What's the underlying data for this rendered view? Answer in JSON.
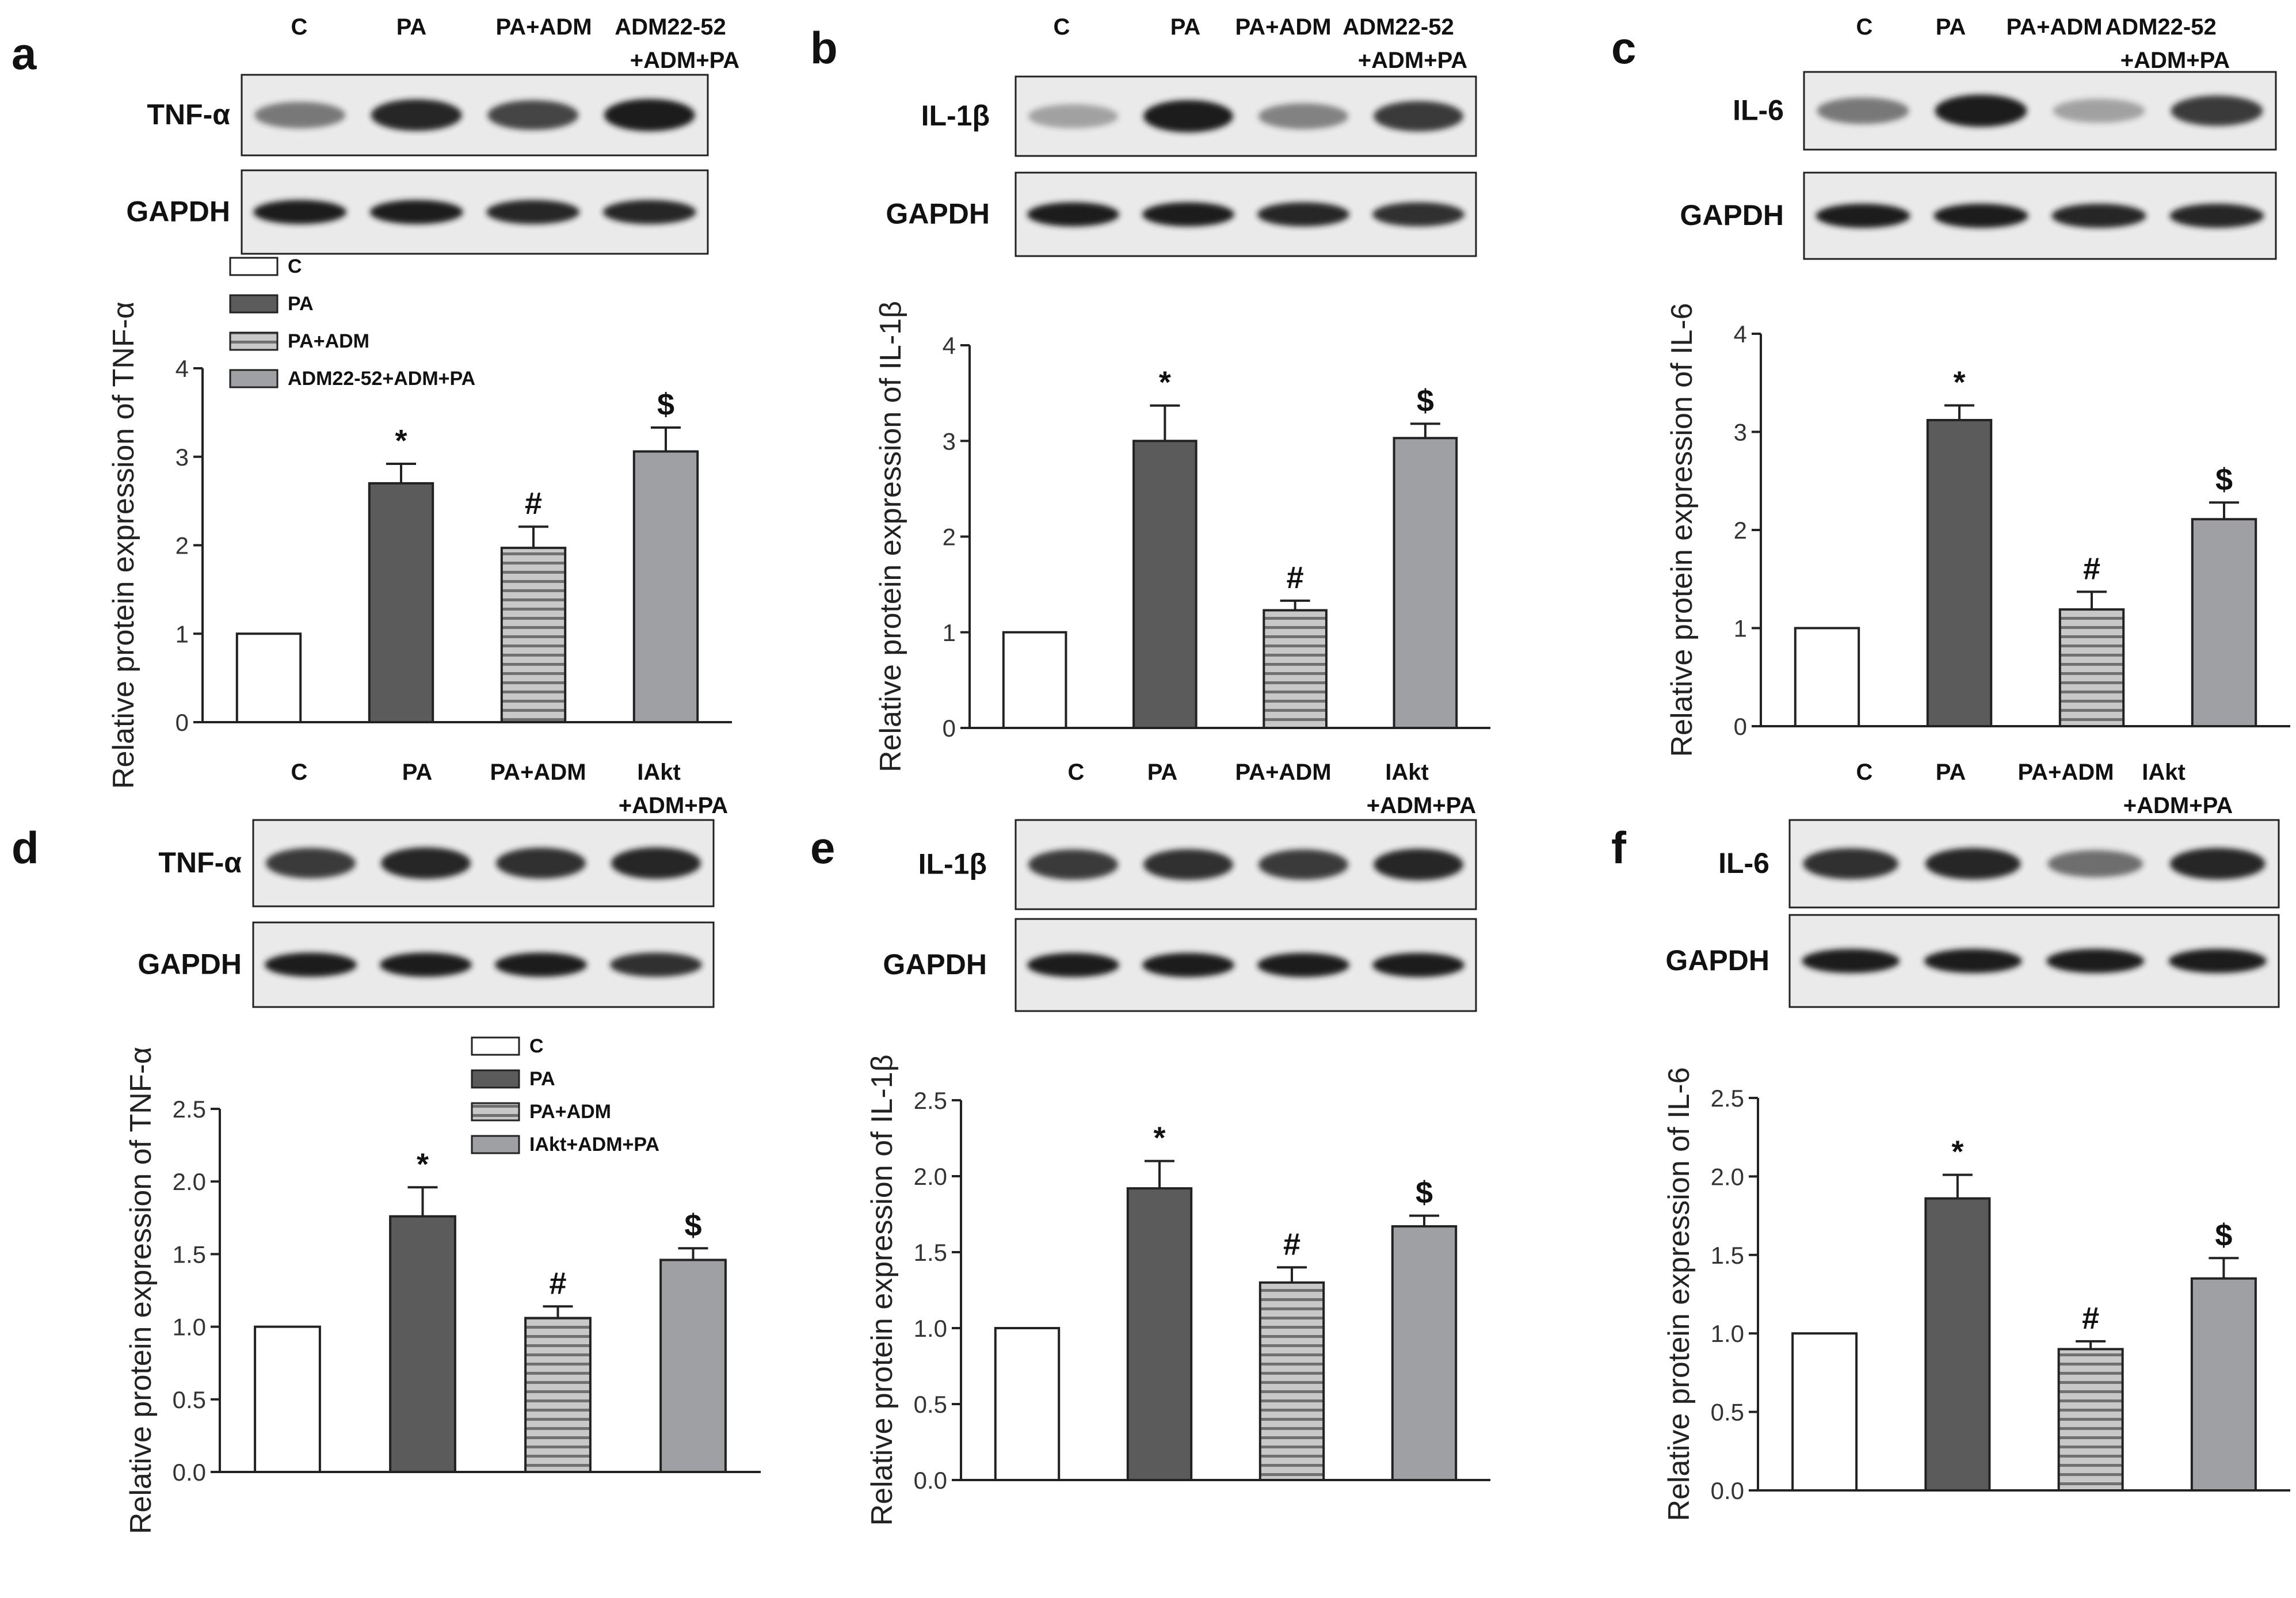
{
  "figure": {
    "colors": {
      "c": "#ffffff",
      "pa": "#5b5b5b",
      "pa_adm": "#c6c6c6",
      "fourth": "#9fa0a4",
      "stripe": "#707070",
      "band": "#1c1c1c",
      "blot_bg": "#eaeaea"
    }
  },
  "chart_data": [
    {
      "panel": "a",
      "type": "bar",
      "lanes": [
        "C",
        "PA",
        "PA+ADM",
        "ADM22-52\n+ADM+PA"
      ],
      "target": "TNF-α",
      "loading": "GAPDH",
      "categories": [
        "C",
        "PA",
        "PA+ADM",
        "ADM22-52+ADM+PA"
      ],
      "values": [
        1.0,
        2.7,
        1.97,
        3.06
      ],
      "errors": [
        0,
        0.22,
        0.24,
        0.27
      ],
      "marks": [
        "",
        "*",
        "#",
        "$"
      ],
      "ylabel": "Relative protein expression of  TNF-α",
      "ylim": [
        0,
        4
      ],
      "yticks": [
        "0",
        "1",
        "2",
        "3",
        "4"
      ],
      "legend": [
        "C",
        "PA",
        "PA+ADM",
        "ADM22-52+ADM+PA"
      ],
      "legend_position": "top-left",
      "band_intensity": [
        0.55,
        0.95,
        0.8,
        1.0
      ],
      "gapdh_intensity": [
        1,
        1,
        0.95,
        0.95
      ]
    },
    {
      "panel": "b",
      "type": "bar",
      "lanes": [
        "C",
        "PA",
        "PA+ADM",
        "ADM22-52\n+ADM+PA"
      ],
      "target": "IL-1β",
      "loading": "GAPDH",
      "categories": [
        "C",
        "PA",
        "PA+ADM",
        "ADM22-52+ADM+PA"
      ],
      "values": [
        1.0,
        3.0,
        1.23,
        3.03
      ],
      "errors": [
        0,
        0.37,
        0.1,
        0.15
      ],
      "marks": [
        "",
        "*",
        "#",
        "$"
      ],
      "ylabel": "Relative protein expression of IL-1β",
      "ylim": [
        0,
        4
      ],
      "yticks": [
        "0",
        "1",
        "2",
        "3",
        "4"
      ],
      "legend": [],
      "legend_position": "",
      "band_intensity": [
        0.35,
        1.0,
        0.5,
        0.85
      ],
      "gapdh_intensity": [
        1,
        1,
        0.95,
        0.9
      ]
    },
    {
      "panel": "c",
      "type": "bar",
      "lanes": [
        "C",
        "PA",
        "PA+ADM",
        "ADM22-52\n+ADM+PA"
      ],
      "target": "IL-6",
      "loading": "GAPDH",
      "categories": [
        "C",
        "PA",
        "PA+ADM",
        "ADM22-52+ADM+PA"
      ],
      "values": [
        1.0,
        3.12,
        1.19,
        2.11
      ],
      "errors": [
        0,
        0.15,
        0.18,
        0.17
      ],
      "marks": [
        "",
        "*",
        "#",
        "$"
      ],
      "ylabel": "Relative protein expression of IL-6",
      "ylim": [
        0,
        4
      ],
      "yticks": [
        "0",
        "1",
        "2",
        "3",
        "4"
      ],
      "legend": [],
      "legend_position": "",
      "band_intensity": [
        0.55,
        1.0,
        0.35,
        0.85
      ],
      "gapdh_intensity": [
        1,
        1,
        0.95,
        0.95
      ]
    },
    {
      "panel": "d",
      "type": "bar",
      "lanes": [
        "C",
        "PA",
        "PA+ADM",
        "IAkt\n+ADM+PA"
      ],
      "target": "TNF-α",
      "loading": "GAPDH",
      "categories": [
        "C",
        "PA",
        "PA+ADM",
        "IAkt+ADM+PA"
      ],
      "values": [
        1.0,
        1.76,
        1.06,
        1.46
      ],
      "errors": [
        0,
        0.2,
        0.08,
        0.08
      ],
      "marks": [
        "",
        "*",
        "#",
        "$"
      ],
      "ylabel": "Relative protein expression of  TNF-α",
      "ylim": [
        0,
        2.5
      ],
      "yticks": [
        "0.0",
        "0.5",
        "1.0",
        "1.5",
        "2.0",
        "2.5"
      ],
      "legend": [
        "C",
        "PA",
        "PA+ADM",
        "IAkt+ADM+PA"
      ],
      "legend_position": "top-right",
      "band_intensity": [
        0.85,
        0.95,
        0.9,
        0.95
      ],
      "gapdh_intensity": [
        1,
        1,
        1,
        0.9
      ]
    },
    {
      "panel": "e",
      "type": "bar",
      "lanes": [
        "C",
        "PA",
        "PA+ADM",
        "IAkt\n+ADM+PA"
      ],
      "target": "IL-1β",
      "loading": "GAPDH",
      "categories": [
        "C",
        "PA",
        "PA+ADM",
        "IAkt+ADM+PA"
      ],
      "values": [
        1.0,
        1.92,
        1.3,
        1.67
      ],
      "errors": [
        0,
        0.18,
        0.1,
        0.07
      ],
      "marks": [
        "",
        "*",
        "#",
        "$"
      ],
      "ylabel": "Relative protein expression of IL-1β",
      "ylim": [
        0,
        2.5
      ],
      "yticks": [
        "0.0",
        "0.5",
        "1.0",
        "1.5",
        "2.0",
        "2.5"
      ],
      "legend": [],
      "legend_position": "",
      "band_intensity": [
        0.85,
        0.9,
        0.85,
        0.95
      ],
      "gapdh_intensity": [
        1,
        1,
        1,
        1
      ]
    },
    {
      "panel": "f",
      "type": "bar",
      "lanes": [
        "C",
        "PA",
        "PA+ADM",
        "IAkt\n+ADM+PA"
      ],
      "target": "IL-6",
      "loading": "GAPDH",
      "categories": [
        "C",
        "PA",
        "PA+ADM",
        "IAkt+ADM+PA"
      ],
      "values": [
        1.0,
        1.86,
        0.9,
        1.35
      ],
      "errors": [
        0,
        0.15,
        0.05,
        0.13
      ],
      "marks": [
        "",
        "*",
        "#",
        "$"
      ],
      "ylabel": "Relative protein expression of IL-6",
      "ylim": [
        0,
        2.5
      ],
      "yticks": [
        "0.0",
        "0.5",
        "1.0",
        "1.5",
        "2.0",
        "2.5"
      ],
      "legend": [],
      "legend_position": "",
      "band_intensity": [
        0.9,
        0.95,
        0.6,
        0.95
      ],
      "gapdh_intensity": [
        1,
        1,
        1,
        1
      ]
    }
  ]
}
